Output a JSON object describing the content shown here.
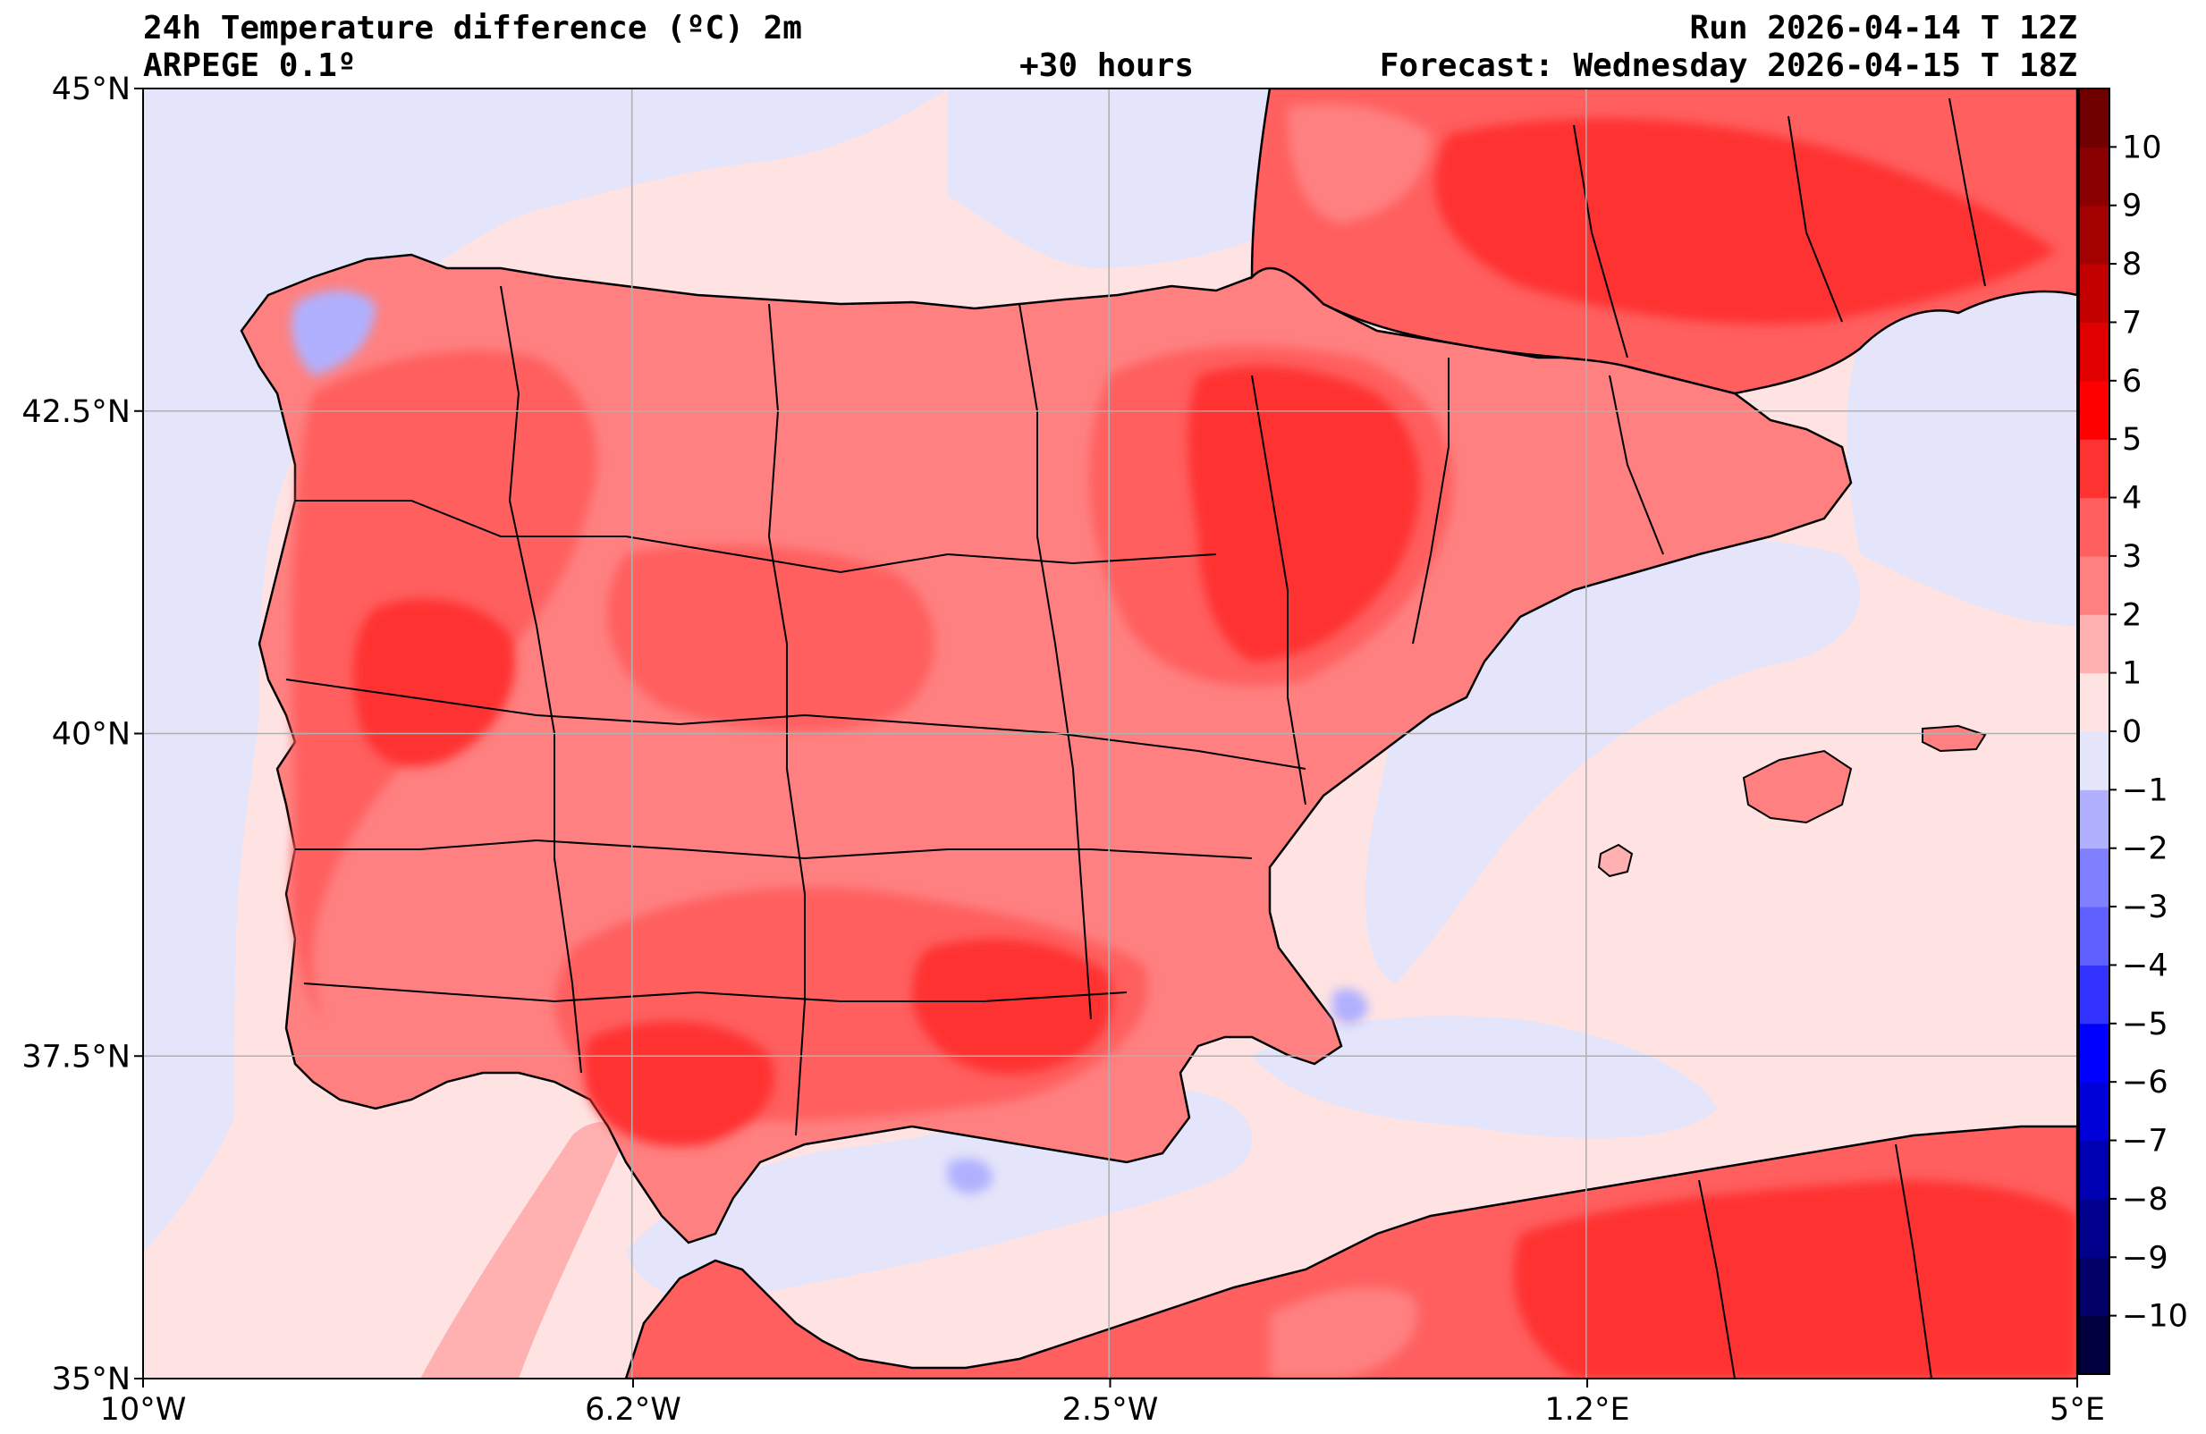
{
  "header": {
    "title": "24h Temperature difference (ºC) 2m",
    "model": "ARPEGE 0.1º",
    "lead_time": "+30 hours",
    "run": "Run 2026-04-14 T 12Z",
    "forecast": "Forecast: Wednesday 2026-04-15 T 18Z"
  },
  "map": {
    "lon_ticks": [
      {
        "value": -10,
        "label": "10°W"
      },
      {
        "value": -6.2,
        "label": "6.2°W"
      },
      {
        "value": -2.5,
        "label": "2.5°W"
      },
      {
        "value": 1.2,
        "label": "1.2°E"
      },
      {
        "value": 5,
        "label": "5°E"
      }
    ],
    "lat_ticks": [
      {
        "value": 45,
        "label": "45°N"
      },
      {
        "value": 42.5,
        "label": "42.5°N"
      },
      {
        "value": 40,
        "label": "40°N"
      },
      {
        "value": 37.5,
        "label": "37.5°N"
      },
      {
        "value": 35,
        "label": "35°N"
      }
    ],
    "lon_range": [
      -10,
      5
    ],
    "lat_range": [
      35,
      45
    ],
    "grid": true
  },
  "colorbar": {
    "levels": [
      -11,
      -10,
      -9,
      -8,
      -7,
      -6,
      -5,
      -4,
      -3,
      -2,
      -1,
      0,
      1,
      2,
      3,
      4,
      5,
      6,
      7,
      8,
      9,
      10,
      11
    ],
    "colors": [
      "#00003e",
      "#000066",
      "#00008c",
      "#0000b3",
      "#0000d9",
      "#0000ff",
      "#3333ff",
      "#6060ff",
      "#8080ff",
      "#b0b0ff",
      "#e4e4fa",
      "#ffe3e3",
      "#ffb0b0",
      "#ff8080",
      "#ff5f5f",
      "#ff3232",
      "#ff0000",
      "#e00000",
      "#c20000",
      "#a30000",
      "#8a0000",
      "#700000"
    ],
    "tick_labels": [
      "−10",
      "−9",
      "−8",
      "−7",
      "−6",
      "−5",
      "−4",
      "−3",
      "−2",
      "−1",
      "0",
      "1",
      "2",
      "3",
      "4",
      "5",
      "6",
      "7",
      "8",
      "9",
      "10"
    ]
  },
  "colors": {
    "sea_base": "#ffe3e3",
    "cool_sea": "#e4e4fa",
    "land_warm": "#ff5f5f",
    "land_hot": "#ff3232",
    "land_mild": "#ff8080",
    "coast_line": "#000000",
    "grid_line": "#b0b0b0"
  }
}
